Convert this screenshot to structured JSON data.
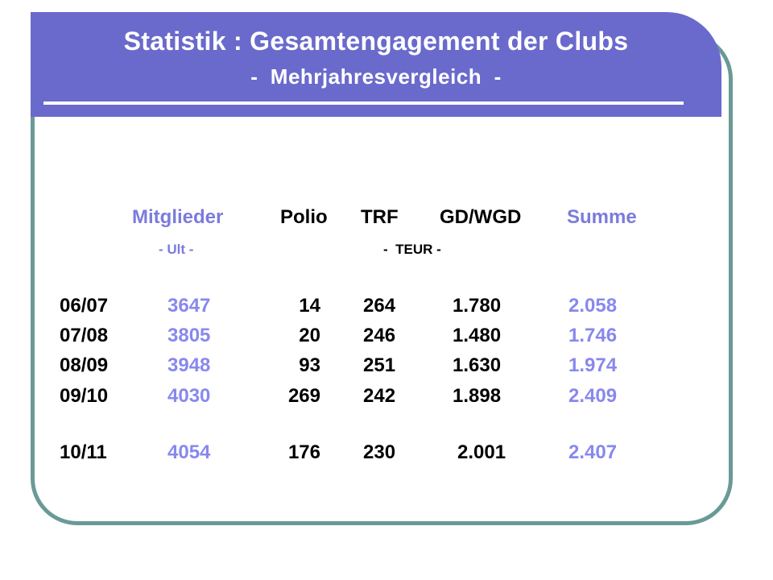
{
  "title": {
    "main": "Statistik : Gesamtengagement der Clubs",
    "subtitle": "-  Mehrjahresvergleich  -"
  },
  "table": {
    "headers": {
      "mitglieder": "Mitglieder",
      "polio": "Polio",
      "trf": "TRF",
      "gd_wgd": "GD/WGD",
      "summe": "Summe"
    },
    "units": {
      "mitglieder": "- Ult -",
      "teur": "-  TEUR -"
    },
    "rows": [
      {
        "year": "06/07",
        "mitglieder": "3647",
        "polio": "14",
        "trf": "264",
        "gd_wgd": "1.780",
        "summe": "2.058"
      },
      {
        "year": "07/08",
        "mitglieder": "3805",
        "polio": "20",
        "trf": "246",
        "gd_wgd": "1.480",
        "summe": "1.746"
      },
      {
        "year": "08/09",
        "mitglieder": "3948",
        "polio": "93",
        "trf": "251",
        "gd_wgd": "1.630",
        "summe": "1.974"
      },
      {
        "year": "09/10",
        "mitglieder": "4030",
        "polio": "269",
        "trf": "242",
        "gd_wgd": "1.898",
        "summe": "2.409"
      },
      {
        "year": "10/11",
        "mitglieder": "4054",
        "polio": "176",
        "trf": "230",
        "gd_wgd": "2.001",
        "summe": "2.407"
      }
    ]
  },
  "colors": {
    "banner": "#6a6acc",
    "frame": "#6a9a96",
    "accent_blue": "#8888ee",
    "text": "#000000"
  }
}
